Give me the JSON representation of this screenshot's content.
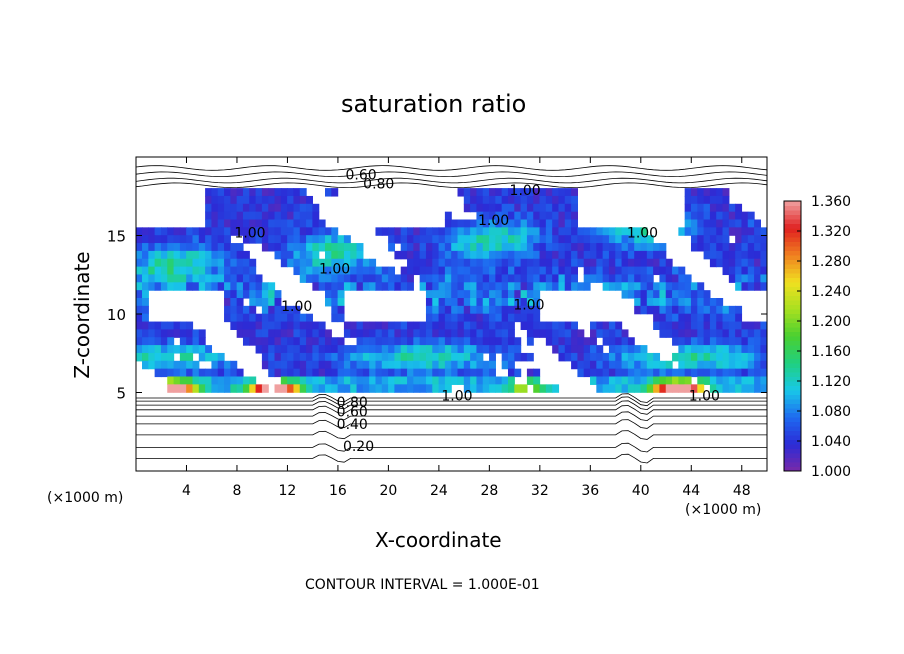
{
  "chart_data": {
    "type": "heatmap",
    "title": "saturation ratio",
    "xlabel": "X-coordinate",
    "ylabel": "Z-coordinate",
    "x_unit": "(×1000 m)",
    "y_unit": "(×1000 m)",
    "xlim": [
      0,
      50
    ],
    "ylim": [
      0,
      20
    ],
    "x_ticks": [
      4,
      8,
      12,
      16,
      20,
      24,
      28,
      32,
      36,
      40,
      44,
      48
    ],
    "y_ticks": [
      5,
      10,
      15
    ],
    "colorbar": {
      "min": 1.0,
      "max": 1.36,
      "ticks": [
        "1.360",
        "1.320",
        "1.280",
        "1.240",
        "1.200",
        "1.160",
        "1.120",
        "1.080",
        "1.040",
        "1.000"
      ],
      "colors": [
        "#7a2aa8",
        "#2b2bd6",
        "#1e6af0",
        "#18c8e8",
        "#20d080",
        "#4ad030",
        "#a8e020",
        "#f0e020",
        "#f08020",
        "#e02020",
        "#f0a0a0"
      ]
    },
    "contour_labels": [
      {
        "text": "0.60",
        "x": 16.6,
        "z": 18.9
      },
      {
        "text": "0.80",
        "x": 18.0,
        "z": 18.3
      },
      {
        "text": "1.00",
        "x": 29.6,
        "z": 17.9
      },
      {
        "text": "1.00",
        "x": 27.1,
        "z": 16.0
      },
      {
        "text": "1.00",
        "x": 7.8,
        "z": 15.2
      },
      {
        "text": "1.00",
        "x": 38.9,
        "z": 15.2
      },
      {
        "text": "1.00",
        "x": 14.5,
        "z": 12.9
      },
      {
        "text": "1.00",
        "x": 11.5,
        "z": 10.5
      },
      {
        "text": "1.00",
        "x": 29.9,
        "z": 10.6
      },
      {
        "text": "1.00",
        "x": 24.2,
        "z": 4.8
      },
      {
        "text": "1.00",
        "x": 43.8,
        "z": 4.8
      },
      {
        "text": "0.80",
        "x": 15.9,
        "z": 4.4
      },
      {
        "text": "0.60",
        "x": 15.9,
        "z": 3.8
      },
      {
        "text": "0.40",
        "x": 15.9,
        "z": 3.0
      },
      {
        "text": "0.20",
        "x": 16.4,
        "z": 1.6
      }
    ],
    "footnote": "CONTOUR INTERVAL = 1.000E-01"
  }
}
